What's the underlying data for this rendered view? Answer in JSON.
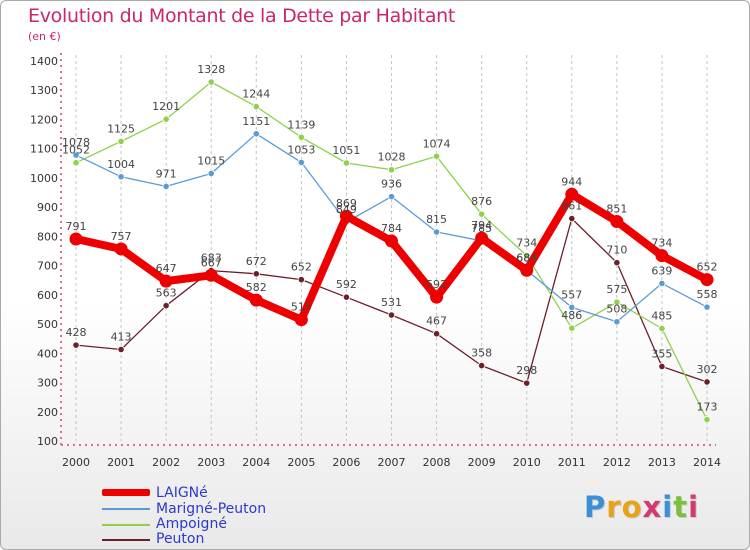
{
  "title": "Evolution du Montant de la Dette par Habitant",
  "unit": "(en €)",
  "logo": {
    "text": "Proxiti",
    "letters": [
      "P",
      "r",
      "o",
      "x",
      "i",
      "t",
      "i"
    ],
    "colors": [
      "#3b8fd6",
      "#e8a21a",
      "#e8a21a",
      "#d23b6e",
      "#3b8fd6",
      "#7cbf3a",
      "#d23b6e"
    ]
  },
  "chart_data": {
    "type": "line",
    "x": [
      "2000",
      "2001",
      "2002",
      "2003",
      "2004",
      "2005",
      "2006",
      "2007",
      "2008",
      "2009",
      "2010",
      "2011",
      "2012",
      "2013",
      "2014"
    ],
    "ylim": [
      100,
      1400
    ],
    "yticks": [
      100,
      200,
      300,
      400,
      500,
      600,
      700,
      800,
      900,
      1000,
      1100,
      1200,
      1300,
      1400
    ],
    "grid": "vertical dashed",
    "legend": "bottom-left",
    "series": [
      {
        "name": "LAIGNé",
        "color": "#ee0000",
        "values": [
          791,
          757,
          647,
          667,
          582,
          515,
          869,
          784,
          592,
          794,
          684,
          944,
          851,
          734,
          652
        ]
      },
      {
        "name": "Marigné-Peuton",
        "color": "#5b9bd5",
        "values": [
          1078,
          1004,
          971,
          1015,
          1151,
          1053,
          849,
          936,
          815,
          785,
          684,
          557,
          508,
          639,
          558
        ]
      },
      {
        "name": "Ampoigné",
        "color": "#8fd14f",
        "values": [
          1052,
          1125,
          1201,
          1328,
          1244,
          1139,
          1051,
          1028,
          1074,
          876,
          734,
          486,
          575,
          485,
          173
        ]
      },
      {
        "name": "Peuton",
        "color": "#6b1f2a",
        "values": [
          428,
          413,
          563,
          683,
          672,
          652,
          592,
          531,
          467,
          358,
          298,
          861,
          710,
          355,
          302
        ]
      }
    ]
  }
}
